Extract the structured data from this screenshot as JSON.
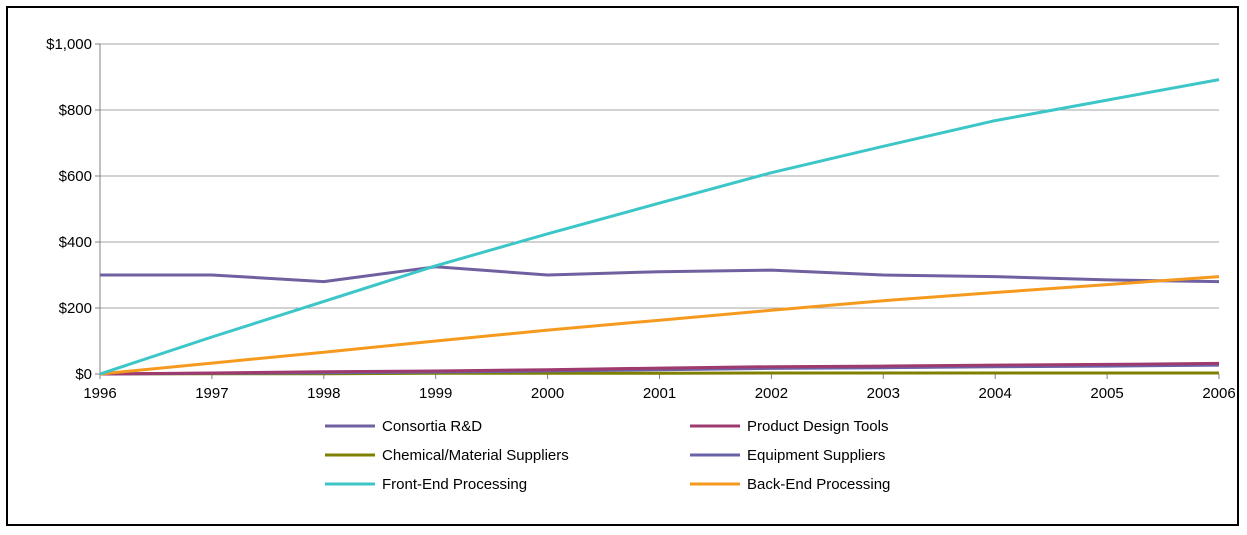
{
  "chart_data": {
    "type": "line",
    "title": "",
    "xlabel": "",
    "ylabel": "",
    "x": [
      "1996",
      "1997",
      "1998",
      "1999",
      "2000",
      "2001",
      "2002",
      "2003",
      "2004",
      "2005",
      "2006"
    ],
    "ylim": [
      0,
      1000
    ],
    "yticks": [
      0,
      200,
      400,
      600,
      800,
      1000
    ],
    "ytick_labels": [
      "$0",
      "$200",
      "$400",
      "$600",
      "$800",
      "$1,000"
    ],
    "grid": true,
    "legend_position": "bottom",
    "series": [
      {
        "name": "Consortia R&D",
        "color": "#7060a0",
        "values": [
          300,
          300,
          280,
          325,
          300,
          310,
          315,
          300,
          295,
          285,
          280
        ]
      },
      {
        "name": "Product Design Tools",
        "color": "#9e3a6e",
        "values": [
          0,
          3,
          7,
          9,
          13,
          18,
          22,
          24,
          27,
          29,
          32
        ]
      },
      {
        "name": "Chemical/Material Suppliers",
        "color": "#7f8000",
        "values": [
          0,
          1,
          1,
          2,
          2,
          2,
          3,
          3,
          3,
          3,
          3
        ]
      },
      {
        "name": "Equipment Suppliers",
        "color": "#6a62a8",
        "values": [
          0,
          2,
          4,
          6,
          9,
          13,
          17,
          19,
          22,
          24,
          27
        ]
      },
      {
        "name": "Front-End Processing",
        "color": "#3cc6c8",
        "values": [
          0,
          112,
          220,
          328,
          425,
          518,
          610,
          690,
          768,
          830,
          892
        ]
      },
      {
        "name": "Back-End Processing",
        "color": "#f59a1e",
        "values": [
          0,
          33,
          66,
          100,
          133,
          163,
          193,
          222,
          247,
          271,
          295
        ]
      }
    ]
  }
}
